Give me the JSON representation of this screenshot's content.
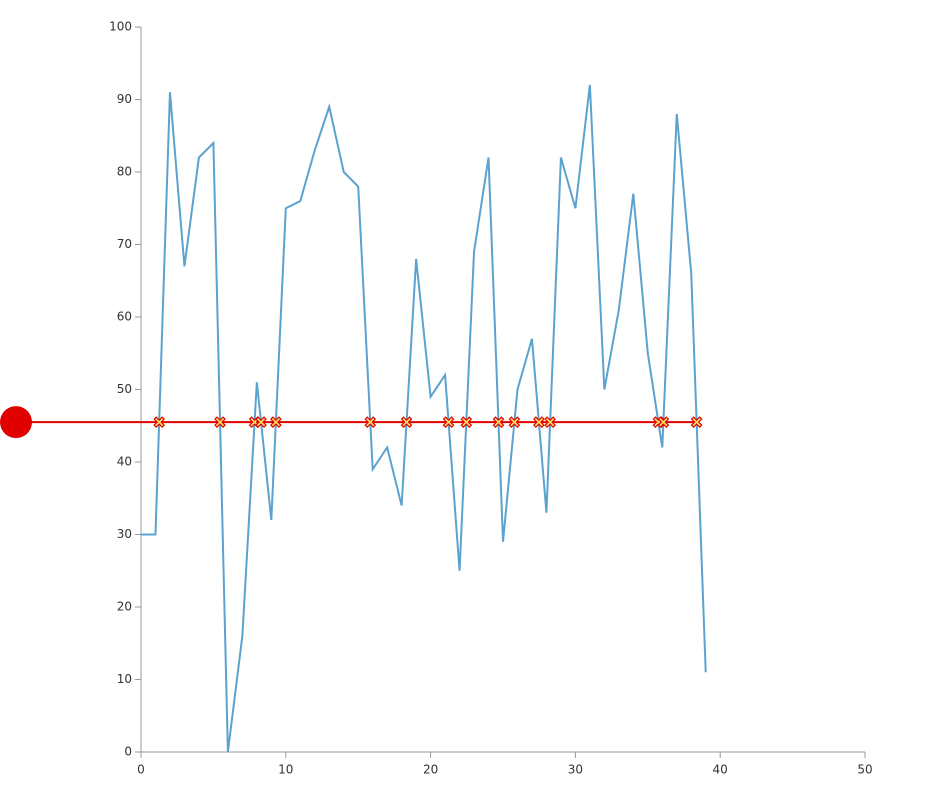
{
  "chart_data": {
    "type": "line",
    "x": [
      0,
      1,
      2,
      3,
      4,
      5,
      6,
      7,
      8,
      9,
      10,
      11,
      12,
      13,
      14,
      15,
      16,
      17,
      18,
      19,
      20,
      21,
      22,
      23,
      24,
      25,
      26,
      27,
      28,
      29,
      30,
      31,
      32,
      33,
      34,
      35,
      36,
      37,
      38,
      39
    ],
    "series": [
      {
        "color": "#5ba3cf",
        "values": [
          30,
          30,
          91,
          67,
          82,
          84,
          0,
          16,
          51,
          32,
          75,
          76,
          83,
          89,
          80,
          78,
          39,
          42,
          34,
          68,
          49,
          52,
          25,
          69,
          82,
          29,
          50,
          57,
          33,
          82,
          75,
          92,
          50,
          61,
          77,
          55,
          42,
          88,
          66,
          11
        ]
      }
    ],
    "threshold": 45.5,
    "threshold_color": "#e00000",
    "xlim": [
      0,
      50
    ],
    "xticks": [
      0,
      10,
      20,
      30,
      40,
      50
    ],
    "ylim": [
      0,
      100
    ],
    "yticks": [
      0,
      10,
      20,
      30,
      40,
      50,
      60,
      70,
      80,
      90,
      100
    ]
  }
}
